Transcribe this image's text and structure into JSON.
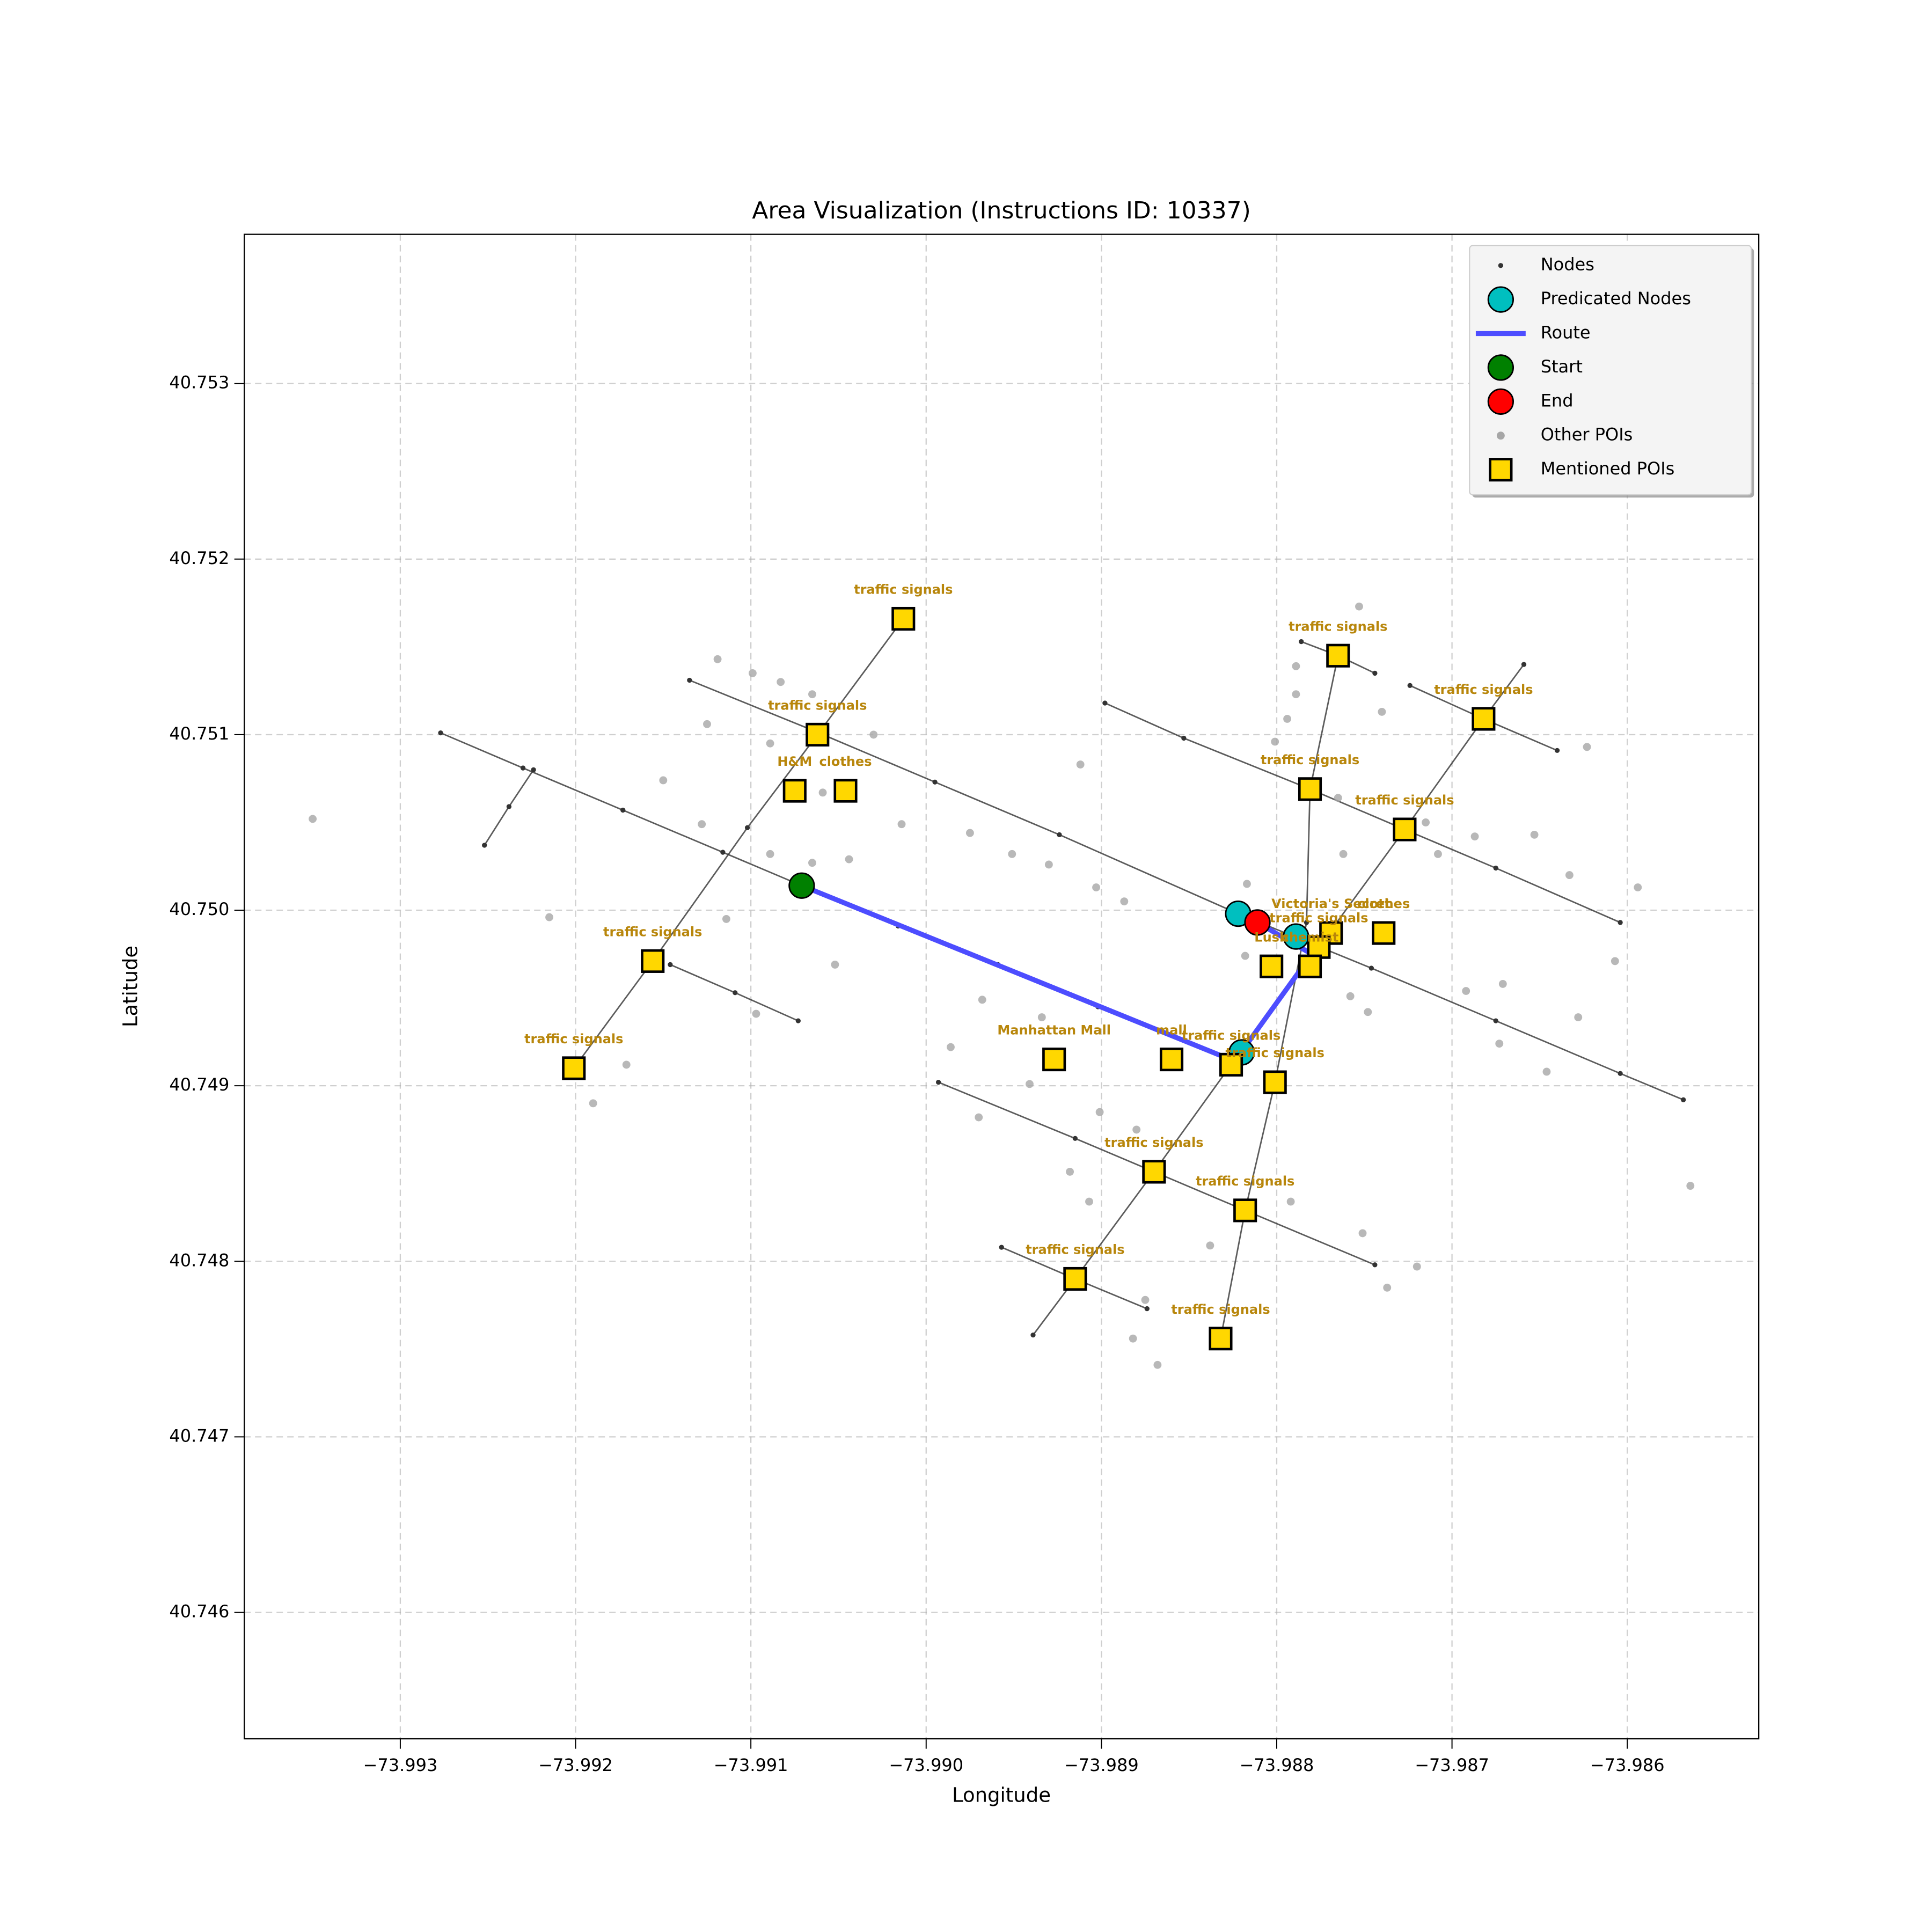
{
  "chart_data": {
    "type": "map",
    "title": "Area Visualization (Instructions ID: 10337)",
    "xlabel": "Longitude",
    "ylabel": "Latitude",
    "xlim": [
      -73.99389,
      -73.98525
    ],
    "ylim": [
      40.74528,
      40.75385
    ],
    "xticks": [
      {
        "value": -73.993,
        "label": "−73.993"
      },
      {
        "value": -73.992,
        "label": "−73.992"
      },
      {
        "value": -73.991,
        "label": "−73.991"
      },
      {
        "value": -73.99,
        "label": "−73.990"
      },
      {
        "value": -73.989,
        "label": "−73.989"
      },
      {
        "value": -73.988,
        "label": "−73.988"
      },
      {
        "value": -73.987,
        "label": "−73.987"
      },
      {
        "value": -73.986,
        "label": "−73.986"
      }
    ],
    "yticks": [
      40.746,
      40.747,
      40.748,
      40.749,
      {
        "value": 40.75,
        "label": "40.750"
      },
      40.751,
      40.752,
      40.753
    ],
    "grid": true,
    "legend": "upper right",
    "label_color": "#b8860b",
    "series": [
      {
        "name": "Nodes",
        "color": "#333333",
        "marker": "dot",
        "roads": [
          {
            "x": [
              -73.99277,
              -73.9923,
              -73.99173,
              -73.99116,
              -73.99071,
              -73.99016,
              -73.98959,
              -73.98902,
              -73.98824
            ],
            "y": [
              40.75101,
              40.75081,
              40.75057,
              40.75033,
              40.75014,
              40.74991,
              40.74969,
              40.74945,
              40.74914
            ]
          },
          {
            "x": [
              -73.99135,
              -73.99066,
              -73.98995,
              -73.98924,
              -73.98822,
              -73.98746,
              -73.98675,
              -73.98604,
              -73.98568
            ],
            "y": [
              40.75131,
              40.75103,
              40.75073,
              40.75043,
              40.74998,
              40.74967,
              40.74937,
              40.74907,
              40.74892
            ]
          },
          {
            "x": [
              -73.98898,
              -73.98853,
              -73.98781,
              -73.98727,
              -73.98675,
              -73.98604
            ],
            "y": [
              40.75118,
              40.75098,
              40.75069,
              40.75046,
              40.75024,
              40.74993
            ]
          },
          {
            "x": [
              -73.98786,
              -73.98765,
              -73.98744
            ],
            "y": [
              40.75153,
              40.75145,
              40.75135
            ]
          },
          {
            "x": [
              -73.98724,
              -73.98682,
              -73.9864
            ],
            "y": [
              40.75128,
              40.75109,
              40.75091
            ]
          },
          {
            "x": [
              -73.99252,
              -73.99238,
              -73.99224
            ],
            "y": [
              40.75037,
              40.75059,
              40.7508
            ]
          },
          {
            "x": [
              -73.99201,
              -73.99156,
              -73.99102,
              -73.99062,
              -73.99013
            ],
            "y": [
              40.7491,
              40.74971,
              40.75047,
              40.751,
              40.75166
            ]
          },
          {
            "x": [
              -73.99146,
              -73.99109,
              -73.99073
            ],
            "y": [
              40.74969,
              40.74953,
              40.74937
            ]
          },
          {
            "x": [
              -73.98939,
              -73.98915,
              -73.9887,
              -73.98826,
              -73.98776,
              -73.98727,
              -73.98682,
              -73.98659
            ],
            "y": [
              40.74758,
              40.7479,
              40.74851,
              40.74912,
              40.74979,
              40.75046,
              40.75109,
              40.7514
            ]
          },
          {
            "x": [
              -73.98832,
              -73.98818,
              -73.98801,
              -73.98783,
              -73.98781,
              -73.98765
            ],
            "y": [
              40.74756,
              40.74829,
              40.74902,
              40.74993,
              40.75069,
              40.75145
            ]
          },
          {
            "x": [
              -73.98993,
              -73.98915,
              -73.9887,
              -73.98818,
              -73.98744
            ],
            "y": [
              40.74902,
              40.7487,
              40.74851,
              40.74829,
              40.74798
            ]
          },
          {
            "x": [
              -73.98957,
              -73.98915,
              -73.98874
            ],
            "y": [
              40.74808,
              40.7479,
              40.74773
            ]
          }
        ]
      },
      {
        "name": "Predicated Nodes",
        "color": "#00bfbf",
        "marker": "circle",
        "x": [
          -73.98822,
          -73.98789,
          -73.9882
        ],
        "y": [
          40.74998,
          40.74985,
          40.74919
        ]
      },
      {
        "name": "Route",
        "color": "#4d4dff",
        "marker": "line",
        "x": [
          -73.99071,
          -73.98824,
          -73.9878,
          -73.98811
        ],
        "y": [
          40.75014,
          40.74914,
          40.74975,
          40.74993
        ]
      },
      {
        "name": "Start",
        "color": "#008000",
        "marker": "circle",
        "x": [
          -73.99071
        ],
        "y": [
          40.75014
        ]
      },
      {
        "name": "End",
        "color": "#ff0000",
        "marker": "circle",
        "x": [
          -73.98811
        ],
        "y": [
          40.74993
        ]
      },
      {
        "name": "Other POIs",
        "color": "#a6a6a6",
        "marker": "poi",
        "x": [
          -73.9935,
          -73.99119,
          -73.99099,
          -73.99083,
          -73.99065,
          -73.99125,
          -73.99089,
          -73.9903,
          -73.9915,
          -73.99059,
          -73.99128,
          -73.99014,
          -73.99089,
          -73.99065,
          -73.99044,
          -73.99215,
          -73.99114,
          -73.99052,
          -73.99097,
          -73.99171,
          -73.9919,
          -73.98912,
          -73.98975,
          -73.98951,
          -73.9893,
          -73.98903,
          -73.98887,
          -73.98968,
          -73.98934,
          -73.98986,
          -73.98941,
          -73.98901,
          -73.9888,
          -73.9897,
          -73.98918,
          -73.98907,
          -73.98882,
          -73.98868,
          -73.98875,
          -73.98753,
          -73.98789,
          -73.98789,
          -73.98794,
          -73.98801,
          -73.9874,
          -73.98623,
          -73.98653,
          -73.98633,
          -73.98594,
          -73.98607,
          -73.98692,
          -73.98671,
          -73.98673,
          -73.98646,
          -73.98628,
          -73.9872,
          -73.98737,
          -73.98751,
          -73.98564,
          -73.98817,
          -73.98818,
          -73.98762,
          -73.98758,
          -73.98748,
          -73.98715,
          -73.98687,
          -73.98708,
          -73.98765,
          -73.98838,
          -73.98792
        ],
        "y": [
          40.75052,
          40.75143,
          40.75135,
          40.7513,
          40.75123,
          40.75106,
          40.75095,
          40.751,
          40.75074,
          40.75067,
          40.75049,
          40.75049,
          40.75032,
          40.75027,
          40.75029,
          40.74996,
          40.74995,
          40.74969,
          40.74941,
          40.74912,
          40.7489,
          40.75083,
          40.75044,
          40.75032,
          40.75026,
          40.75013,
          40.75005,
          40.74949,
          40.74939,
          40.74922,
          40.74901,
          40.74885,
          40.74875,
          40.74882,
          40.74851,
          40.74834,
          40.74756,
          40.74741,
          40.74778,
          40.75173,
          40.75139,
          40.75123,
          40.75109,
          40.75096,
          40.75113,
          40.75093,
          40.75043,
          40.7502,
          40.75013,
          40.74971,
          40.74954,
          40.74958,
          40.74924,
          40.74908,
          40.74939,
          40.74797,
          40.74785,
          40.74816,
          40.74843,
          40.75015,
          40.74974,
          40.75032,
          40.74951,
          40.74942,
          40.7505,
          40.75042,
          40.75032,
          40.75064,
          40.74809,
          40.74834
        ]
      },
      {
        "name": "Mentioned POIs",
        "color": "#ffd700",
        "marker": "square",
        "labels": [
          "traffic signals",
          "traffic signals",
          "H&M",
          "clothes",
          "traffic signals",
          "traffic signals",
          "traffic signals",
          "traffic signals",
          "Victoria's Secret",
          "clothes",
          "traffic signals",
          "Lush",
          "chemist",
          "Manhattan Mall",
          "mall",
          "traffic signals",
          "traffic signals",
          "traffic signals",
          "traffic signals",
          "traffic signals",
          "traffic signals",
          "traffic signals",
          "traffic signals"
        ],
        "x": [
          -73.99013,
          -73.99062,
          -73.99075,
          -73.99046,
          -73.98765,
          -73.98682,
          -73.98781,
          -73.98727,
          -73.98769,
          -73.98739,
          -73.98776,
          -73.98803,
          -73.98781,
          -73.98927,
          -73.9886,
          -73.98826,
          -73.98801,
          -73.9887,
          -73.98818,
          -73.98915,
          -73.98832,
          -73.99156,
          -73.99201
        ],
        "y": [
          40.75166,
          40.751,
          40.75068,
          40.75068,
          40.75145,
          40.75109,
          40.75069,
          40.75046,
          40.74987,
          40.74987,
          40.74979,
          40.74968,
          40.74968,
          40.74915,
          40.74915,
          40.74912,
          40.74902,
          40.74851,
          40.74829,
          40.7479,
          40.74756,
          40.74971,
          40.7491
        ]
      }
    ]
  }
}
